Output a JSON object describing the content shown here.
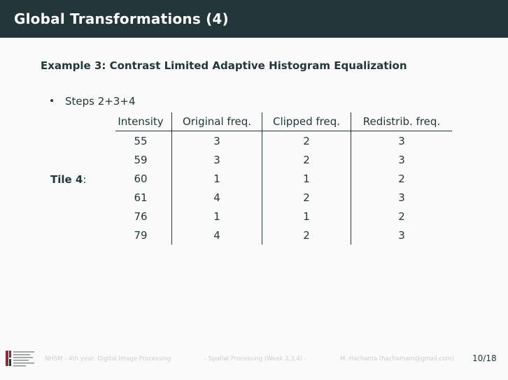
{
  "header": {
    "title": "Global Transformations (4)"
  },
  "content": {
    "subtitle": "Example 3: Contrast Limited Adaptive Histogram Equalization",
    "bullet": "Steps 2+3+4",
    "tile_label": "Tile 4",
    "tile_colon": ":",
    "table": {
      "headers": [
        "Intensity",
        "Original freq.",
        "Clipped freq.",
        "Redistrib. freq."
      ],
      "rows": [
        [
          "55",
          "3",
          "2",
          "3"
        ],
        [
          "59",
          "3",
          "2",
          "3"
        ],
        [
          "60",
          "1",
          "1",
          "2"
        ],
        [
          "61",
          "4",
          "2",
          "3"
        ],
        [
          "76",
          "1",
          "1",
          "2"
        ],
        [
          "79",
          "4",
          "2",
          "3"
        ]
      ]
    }
  },
  "footer": {
    "course": "NHSM - 4th year: Digital Image Processing",
    "topic": "- Spatial Processing (Week 2,3,4) -",
    "author": "M. Hachama (hachamam@gmail.com)",
    "page": "10/18"
  },
  "colors": {
    "title_bar": "#23373b",
    "text": "#23373b",
    "footer_text": "#c9cfd1",
    "background": "#fafafa"
  }
}
